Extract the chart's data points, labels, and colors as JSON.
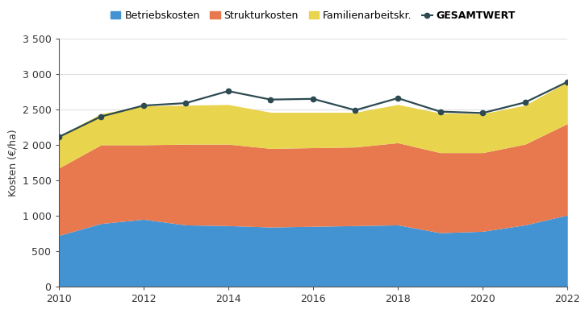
{
  "years": [
    2010,
    2011,
    2012,
    2013,
    2014,
    2015,
    2016,
    2017,
    2018,
    2019,
    2020,
    2021,
    2022
  ],
  "betriebskosten": [
    720,
    890,
    950,
    870,
    860,
    840,
    850,
    860,
    870,
    760,
    780,
    870,
    1010
  ],
  "strukturkosten": [
    950,
    1110,
    1050,
    1140,
    1150,
    1110,
    1110,
    1110,
    1160,
    1130,
    1110,
    1140,
    1290
  ],
  "familienarbeitskr": [
    450,
    440,
    550,
    550,
    560,
    510,
    500,
    490,
    540,
    560,
    550,
    550,
    590
  ],
  "gesamtwert": [
    2110,
    2400,
    2555,
    2590,
    2760,
    2640,
    2650,
    2490,
    2660,
    2470,
    2450,
    2600,
    2890
  ],
  "colors": {
    "betriebskosten": "#4393d3",
    "strukturkosten": "#e8784d",
    "familienarbeitskr": "#e8d44d",
    "gesamtwert": "#2d4a52"
  },
  "ylabel": "Kosten (€/ha)",
  "ylim": [
    0,
    3500
  ],
  "yticks": [
    0,
    500,
    1000,
    1500,
    2000,
    2500,
    3000,
    3500
  ],
  "ytick_labels": [
    "0",
    "500",
    "1 000",
    "1 500",
    "2 000",
    "2 500",
    "3 000",
    "3 500"
  ],
  "legend_labels": [
    "Betriebskosten",
    "Strukturkosten",
    "Familienarbeitskr.",
    "GESAMTWERT"
  ],
  "background_color": "#ffffff",
  "grid_color": "#e0e0e0",
  "text_color": "#333333"
}
